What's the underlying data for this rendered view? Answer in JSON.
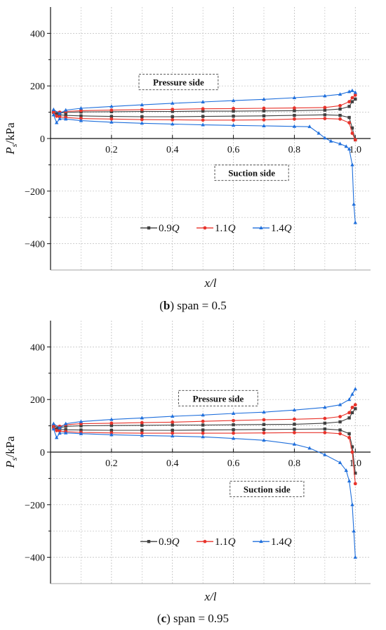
{
  "figure": {
    "captions": [
      {
        "letter": "b",
        "text": ") span = 0.5"
      },
      {
        "letter": "c",
        "text": ") span = 0.95"
      }
    ]
  },
  "colors": {
    "0.9Q": "#404040",
    "1.1Q": "#e8332b",
    "1.4Q": "#1f6fdc",
    "grid": "#bdbdbd",
    "axis": "#111111"
  },
  "chart_data": [
    {
      "type": "line",
      "title": "",
      "xlabel": "x/l",
      "ylabel": "Ps/kPa",
      "ylabel_main": "P",
      "ylabel_sub": "s",
      "ylabel_rest": "/kPa",
      "xlim": [
        0,
        1.05
      ],
      "ylim": [
        -500,
        500
      ],
      "x_ticks": [
        0.2,
        0.4,
        0.6,
        0.8,
        1.0
      ],
      "x_tick_labels": [
        "0.2",
        "0.4",
        "0.6",
        "0.8",
        "1.0"
      ],
      "y_ticks": [
        -400,
        -200,
        0,
        200,
        400
      ],
      "y_tick_labels": [
        "−400",
        "−200",
        "0",
        "200",
        "400"
      ],
      "grid": true,
      "legend_placement": "bottom-center",
      "annotations": [
        {
          "text": "Pressure side",
          "x": 0.42,
          "y": 215
        },
        {
          "text": "Suction side",
          "x": 0.66,
          "y": -130
        }
      ],
      "series": [
        {
          "name": "0.9Q",
          "label_main": "0.9",
          "label_q": "Q",
          "color_key": "0.9Q",
          "marker": "square",
          "pressure": [
            [
              0.01,
              100
            ],
            [
              0.03,
              97
            ],
            [
              0.05,
              99
            ],
            [
              0.1,
              101
            ],
            [
              0.2,
              102
            ],
            [
              0.3,
              103
            ],
            [
              0.4,
              103
            ],
            [
              0.5,
              104
            ],
            [
              0.6,
              104
            ],
            [
              0.7,
              105
            ],
            [
              0.8,
              106
            ],
            [
              0.9,
              108
            ],
            [
              0.95,
              112
            ],
            [
              0.98,
              122
            ],
            [
              0.99,
              140
            ],
            [
              1.0,
              150
            ]
          ],
          "suction": [
            [
              0.01,
              100
            ],
            [
              0.02,
              92
            ],
            [
              0.03,
              90
            ],
            [
              0.05,
              88
            ],
            [
              0.1,
              86
            ],
            [
              0.2,
              84
            ],
            [
              0.3,
              83
            ],
            [
              0.4,
              83
            ],
            [
              0.5,
              84
            ],
            [
              0.6,
              85
            ],
            [
              0.7,
              86
            ],
            [
              0.8,
              88
            ],
            [
              0.9,
              90
            ],
            [
              0.95,
              88
            ],
            [
              0.98,
              80
            ],
            [
              0.99,
              40
            ],
            [
              1.0,
              -5
            ]
          ]
        },
        {
          "name": "1.1Q",
          "label_main": "1.1",
          "label_q": "Q",
          "color_key": "1.1Q",
          "marker": "circle",
          "pressure": [
            [
              0.01,
              105
            ],
            [
              0.03,
              100
            ],
            [
              0.05,
              103
            ],
            [
              0.1,
              106
            ],
            [
              0.2,
              108
            ],
            [
              0.3,
              110
            ],
            [
              0.4,
              111
            ],
            [
              0.5,
              113
            ],
            [
              0.6,
              114
            ],
            [
              0.7,
              115
            ],
            [
              0.8,
              116
            ],
            [
              0.9,
              118
            ],
            [
              0.95,
              125
            ],
            [
              0.98,
              140
            ],
            [
              0.99,
              155
            ],
            [
              1.0,
              165
            ]
          ],
          "suction": [
            [
              0.01,
              98
            ],
            [
              0.02,
              85
            ],
            [
              0.03,
              82
            ],
            [
              0.05,
              80
            ],
            [
              0.1,
              76
            ],
            [
              0.2,
              74
            ],
            [
              0.3,
              72
            ],
            [
              0.4,
              71
            ],
            [
              0.5,
              70
            ],
            [
              0.6,
              70
            ],
            [
              0.7,
              71
            ],
            [
              0.8,
              74
            ],
            [
              0.9,
              76
            ],
            [
              0.95,
              74
            ],
            [
              0.98,
              60
            ],
            [
              0.99,
              20
            ],
            [
              1.0,
              -5
            ]
          ]
        },
        {
          "name": "1.4Q",
          "label_main": "1.4",
          "label_q": "Q",
          "color_key": "1.4Q",
          "marker": "triangle",
          "pressure": [
            [
              0.01,
              110
            ],
            [
              0.03,
              95
            ],
            [
              0.05,
              108
            ],
            [
              0.1,
              115
            ],
            [
              0.2,
              122
            ],
            [
              0.3,
              128
            ],
            [
              0.4,
              134
            ],
            [
              0.5,
              139
            ],
            [
              0.6,
              144
            ],
            [
              0.7,
              149
            ],
            [
              0.8,
              155
            ],
            [
              0.9,
              162
            ],
            [
              0.95,
              168
            ],
            [
              0.98,
              178
            ],
            [
              0.99,
              182
            ],
            [
              1.0,
              175
            ]
          ],
          "suction": [
            [
              0.01,
              90
            ],
            [
              0.02,
              60
            ],
            [
              0.03,
              75
            ],
            [
              0.05,
              74
            ],
            [
              0.1,
              68
            ],
            [
              0.2,
              62
            ],
            [
              0.3,
              58
            ],
            [
              0.4,
              55
            ],
            [
              0.5,
              52
            ],
            [
              0.6,
              50
            ],
            [
              0.7,
              48
            ],
            [
              0.8,
              46
            ],
            [
              0.85,
              45
            ],
            [
              0.88,
              20
            ],
            [
              0.9,
              2
            ],
            [
              0.92,
              -10
            ],
            [
              0.95,
              -20
            ],
            [
              0.97,
              -30
            ],
            [
              0.98,
              -40
            ],
            [
              0.99,
              -100
            ],
            [
              0.995,
              -250
            ],
            [
              1.0,
              -320
            ]
          ]
        }
      ]
    },
    {
      "type": "line",
      "title": "",
      "xlabel": "x/l",
      "ylabel": "Ps/kPa",
      "ylabel_main": "P",
      "ylabel_sub": "s",
      "ylabel_rest": "/kPa",
      "xlim": [
        0,
        1.05
      ],
      "ylim": [
        -500,
        500
      ],
      "x_ticks": [
        0.2,
        0.4,
        0.6,
        0.8,
        1.0
      ],
      "x_tick_labels": [
        "0.2",
        "0.4",
        "0.6",
        "0.8",
        "1.0"
      ],
      "y_ticks": [
        -400,
        -200,
        0,
        200,
        400
      ],
      "y_tick_labels": [
        "−400",
        "−200",
        "0",
        "200",
        "400"
      ],
      "grid": true,
      "legend_placement": "bottom-center",
      "annotations": [
        {
          "text": "Pressure side",
          "x": 0.55,
          "y": 205
        },
        {
          "text": "Suction side",
          "x": 0.71,
          "y": -140
        }
      ],
      "series": [
        {
          "name": "0.9Q",
          "label_main": "0.9",
          "label_q": "Q",
          "color_key": "0.9Q",
          "marker": "square",
          "pressure": [
            [
              0.01,
              100
            ],
            [
              0.03,
              92
            ],
            [
              0.05,
              98
            ],
            [
              0.1,
              100
            ],
            [
              0.2,
              101
            ],
            [
              0.3,
              102
            ],
            [
              0.4,
              103
            ],
            [
              0.5,
              103
            ],
            [
              0.6,
              104
            ],
            [
              0.7,
              105
            ],
            [
              0.8,
              106
            ],
            [
              0.9,
              110
            ],
            [
              0.95,
              115
            ],
            [
              0.98,
              130
            ],
            [
              0.99,
              150
            ],
            [
              1.0,
              165
            ]
          ],
          "suction": [
            [
              0.01,
              95
            ],
            [
              0.02,
              88
            ],
            [
              0.03,
              87
            ],
            [
              0.05,
              85
            ],
            [
              0.1,
              84
            ],
            [
              0.2,
              83
            ],
            [
              0.3,
              83
            ],
            [
              0.4,
              83
            ],
            [
              0.5,
              84
            ],
            [
              0.6,
              85
            ],
            [
              0.7,
              86
            ],
            [
              0.8,
              87
            ],
            [
              0.9,
              88
            ],
            [
              0.95,
              84
            ],
            [
              0.98,
              70
            ],
            [
              0.99,
              20
            ],
            [
              1.0,
              -80
            ]
          ]
        },
        {
          "name": "1.1Q",
          "label_main": "1.1",
          "label_q": "Q",
          "color_key": "1.1Q",
          "marker": "circle",
          "pressure": [
            [
              0.01,
              103
            ],
            [
              0.03,
              98
            ],
            [
              0.05,
              104
            ],
            [
              0.1,
              108
            ],
            [
              0.2,
              110
            ],
            [
              0.3,
              112
            ],
            [
              0.4,
              114
            ],
            [
              0.5,
              117
            ],
            [
              0.6,
              120
            ],
            [
              0.7,
              123
            ],
            [
              0.8,
              125
            ],
            [
              0.9,
              128
            ],
            [
              0.95,
              135
            ],
            [
              0.98,
              150
            ],
            [
              0.99,
              170
            ],
            [
              1.0,
              180
            ]
          ],
          "suction": [
            [
              0.01,
              92
            ],
            [
              0.02,
              82
            ],
            [
              0.03,
              80
            ],
            [
              0.05,
              78
            ],
            [
              0.1,
              75
            ],
            [
              0.2,
              73
            ],
            [
              0.3,
              72
            ],
            [
              0.4,
              72
            ],
            [
              0.5,
              72
            ],
            [
              0.6,
              72
            ],
            [
              0.7,
              73
            ],
            [
              0.8,
              74
            ],
            [
              0.9,
              74
            ],
            [
              0.95,
              70
            ],
            [
              0.98,
              55
            ],
            [
              0.99,
              0
            ],
            [
              1.0,
              -120
            ]
          ]
        },
        {
          "name": "1.4Q",
          "label_main": "1.4",
          "label_q": "Q",
          "color_key": "1.4Q",
          "marker": "triangle",
          "pressure": [
            [
              0.01,
              108
            ],
            [
              0.03,
              92
            ],
            [
              0.05,
              108
            ],
            [
              0.1,
              116
            ],
            [
              0.2,
              124
            ],
            [
              0.3,
              130
            ],
            [
              0.4,
              136
            ],
            [
              0.5,
              141
            ],
            [
              0.6,
              147
            ],
            [
              0.7,
              152
            ],
            [
              0.8,
              160
            ],
            [
              0.9,
              170
            ],
            [
              0.95,
              180
            ],
            [
              0.98,
              200
            ],
            [
              0.99,
              220
            ],
            [
              1.0,
              240
            ]
          ],
          "suction": [
            [
              0.01,
              88
            ],
            [
              0.02,
              55
            ],
            [
              0.03,
              72
            ],
            [
              0.05,
              73
            ],
            [
              0.1,
              70
            ],
            [
              0.2,
              66
            ],
            [
              0.3,
              63
            ],
            [
              0.4,
              61
            ],
            [
              0.5,
              58
            ],
            [
              0.6,
              52
            ],
            [
              0.7,
              45
            ],
            [
              0.8,
              30
            ],
            [
              0.85,
              15
            ],
            [
              0.9,
              -10
            ],
            [
              0.95,
              -40
            ],
            [
              0.97,
              -70
            ],
            [
              0.98,
              -110
            ],
            [
              0.99,
              -200
            ],
            [
              0.995,
              -300
            ],
            [
              1.0,
              -400
            ]
          ]
        }
      ]
    }
  ]
}
